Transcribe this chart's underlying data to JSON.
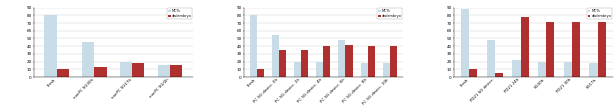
{
  "chart1": {
    "categories": [
      "Fresh",
      "nonPC SG30h",
      "nonPC SG17h",
      "nonPC SG/2h"
    ],
    "mc": [
      80,
      45,
      20,
      15
    ],
    "dw": [
      10,
      13,
      18,
      15
    ],
    "ylim": [
      0,
      90
    ],
    "yticks": [
      0,
      10,
      20,
      30,
      40,
      50,
      60,
      70,
      80,
      90
    ]
  },
  "chart2": {
    "categories": [
      "Fresh",
      "PC SG desicc. 0h",
      "PC SG desicc. 2h",
      "PC SG desicc. 4h",
      "PC SG desicc. 6h",
      "PC SG desicc. 8h",
      "PC SG desicc. 10h"
    ],
    "mc": [
      80,
      55,
      20,
      20,
      48,
      18,
      18
    ],
    "dw": [
      10,
      35,
      35,
      40,
      42,
      40,
      40
    ],
    "ylim": [
      0,
      90
    ],
    "yticks": [
      0,
      10,
      20,
      30,
      40,
      50,
      60,
      70,
      80,
      90
    ]
  },
  "chart3": {
    "categories": [
      "Fresh",
      "PD21 SG desicc.",
      "PD21 24h",
      "SG30h",
      "PD21 30h",
      "SG17h"
    ],
    "mc": [
      88,
      48,
      22,
      20,
      20,
      18
    ],
    "dw": [
      10,
      5,
      78,
      72,
      72,
      72
    ],
    "ylim": [
      0,
      90
    ],
    "yticks": [
      0,
      10,
      20,
      30,
      40,
      50,
      60,
      70,
      80,
      90
    ]
  },
  "colors": {
    "mc": "#c8dce8",
    "dw": "#b03030"
  },
  "legend": {
    "mc_label": "MC%",
    "dw_label": "dw/embryo"
  },
  "bar_width": 0.32,
  "tick_fontsize": 3.0,
  "label_fontsize": 2.8,
  "background_color": "#ffffff"
}
